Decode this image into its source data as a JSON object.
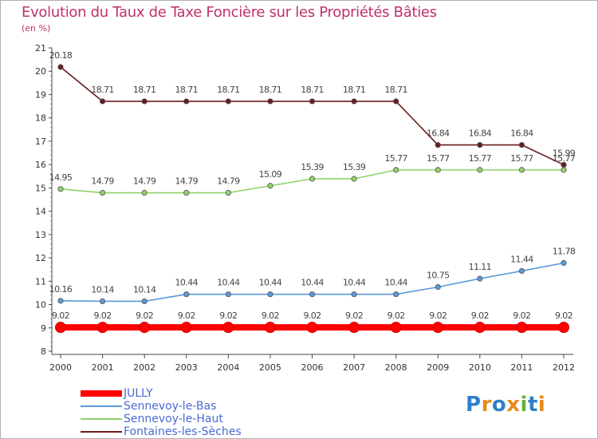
{
  "header": {
    "title": "Evolution du Taux de Taxe Foncière sur les Propriétés Bâties",
    "unit": "(en %)"
  },
  "logo": {
    "text": "Proxiti",
    "letters": [
      "P",
      "r",
      "o",
      "x",
      "i",
      "t",
      "i"
    ],
    "colors": [
      "#2f80c8",
      "#e58a1c",
      "#2f80c8",
      "#e58a1c",
      "#63b33a",
      "#2f80c8",
      "#e58a1c"
    ]
  },
  "chart_data": {
    "type": "line",
    "title": "Evolution du Taux de Taxe Foncière sur les Propriétés Bâties",
    "ylabel": "(en %)",
    "xlabel": "",
    "x": [
      "2000",
      "2001",
      "2002",
      "2003",
      "2004",
      "2005",
      "2006",
      "2007",
      "2008",
      "2009",
      "2010",
      "2011",
      "2012"
    ],
    "ylim": [
      8,
      21
    ],
    "yticks": [
      8,
      9,
      10,
      11,
      12,
      13,
      14,
      15,
      16,
      17,
      18,
      19,
      20,
      21
    ],
    "grid": false,
    "legend_position": "bottom-left",
    "series": [
      {
        "name": "Fontaines-les-Sèches",
        "color": "#6b1c1c",
        "values": [
          20.18,
          18.71,
          18.71,
          18.71,
          18.71,
          18.71,
          18.71,
          18.71,
          18.71,
          16.84,
          16.84,
          16.84,
          15.99
        ],
        "labels": [
          "20.18",
          "18.71",
          "18.71",
          "18.71",
          "18.71",
          "18.71",
          "18.71",
          "18.71",
          "18.71",
          "16.84",
          "16.84",
          "16.84",
          "15.99"
        ]
      },
      {
        "name": "Sennevoy-le-Haut",
        "color": "#8ed26b",
        "values": [
          14.95,
          14.79,
          14.79,
          14.79,
          14.79,
          15.09,
          15.39,
          15.39,
          15.77,
          15.77,
          15.77,
          15.77,
          15.77
        ],
        "labels": [
          "14.95",
          "14.79",
          "14.79",
          "14.79",
          "14.79",
          "15.09",
          "15.39",
          "15.39",
          "15.77",
          "15.77",
          "15.77",
          "15.77",
          "15.77"
        ]
      },
      {
        "name": "Sennevoy-le-Bas",
        "color": "#5a9ad5",
        "values": [
          10.16,
          10.14,
          10.14,
          10.44,
          10.44,
          10.44,
          10.44,
          10.44,
          10.44,
          10.75,
          11.11,
          11.44,
          11.78
        ],
        "labels": [
          "10.16",
          "10.14",
          "10.14",
          "10.44",
          "10.44",
          "10.44",
          "10.44",
          "10.44",
          "10.44",
          "10.75",
          "11.11",
          "11.44",
          "11.78"
        ]
      },
      {
        "name": "JULLY",
        "color": "#ff0000",
        "values": [
          9.02,
          9.02,
          9.02,
          9.02,
          9.02,
          9.02,
          9.02,
          9.02,
          9.02,
          9.02,
          9.02,
          9.02,
          9.02
        ],
        "labels": [
          "9.02",
          "9.02",
          "9.02",
          "9.02",
          "9.02",
          "9.02",
          "9.02",
          "9.02",
          "9.02",
          "9.02",
          "9.02",
          "9.02",
          "9.02"
        ]
      }
    ],
    "legend": [
      "JULLY",
      "Sennevoy-le-Bas",
      "Sennevoy-le-Haut",
      "Fontaines-les-Sèches"
    ]
  }
}
